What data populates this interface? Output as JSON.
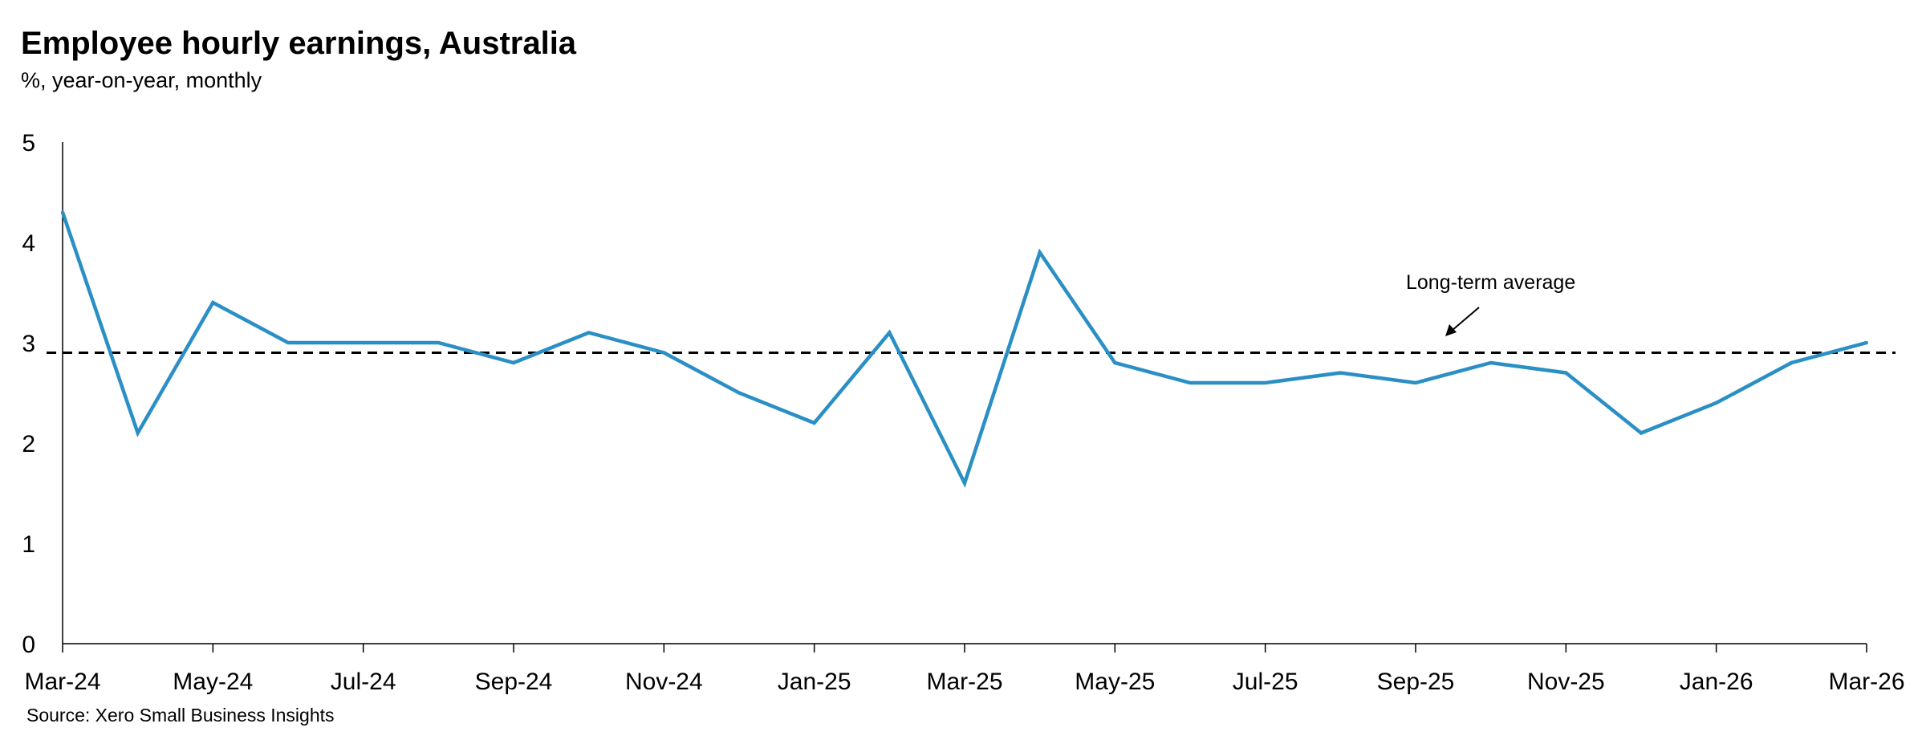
{
  "chart_data": {
    "type": "line",
    "title": "Employee hourly earnings, Australia",
    "subtitle": "%, year-on-year, monthly",
    "source": "Source: Xero Small Business Insights",
    "xlabel": "",
    "ylabel": "",
    "ylim": [
      0,
      5
    ],
    "yticks": [
      0,
      1,
      2,
      3,
      4,
      5
    ],
    "grid": false,
    "x": [
      "Mar-24",
      "Apr-24",
      "May-24",
      "Jun-24",
      "Jul-24",
      "Aug-24",
      "Sep-24",
      "Oct-24",
      "Nov-24",
      "Dec-24",
      "Jan-25",
      "Feb-25",
      "Mar-25",
      "Apr-25",
      "May-25",
      "Jun-25",
      "Jul-25",
      "Aug-25",
      "Sep-25",
      "Oct-25",
      "Nov-25",
      "Dec-25",
      "Jan-26",
      "Feb-26",
      "Mar-26"
    ],
    "xtick_labels": [
      "Mar-24",
      "May-24",
      "Jul-24",
      "Sep-24",
      "Nov-24",
      "Jan-25",
      "Mar-25",
      "May-25",
      "Jul-25",
      "Sep-25",
      "Nov-25",
      "Jan-26",
      "Mar-26"
    ],
    "series": [
      {
        "color": "#2a8fc4",
        "values": [
          4.3,
          2.1,
          3.4,
          3.0,
          3.0,
          3.0,
          2.8,
          3.1,
          2.9,
          2.5,
          2.2,
          3.1,
          1.6,
          3.9,
          2.8,
          2.6,
          2.6,
          2.7,
          2.6,
          2.8,
          2.7,
          2.1,
          2.4,
          2.8,
          3.0
        ]
      }
    ],
    "reference_line": {
      "label": "Long-term average",
      "value": 2.9,
      "style": "dashed",
      "color": "#000000"
    }
  }
}
